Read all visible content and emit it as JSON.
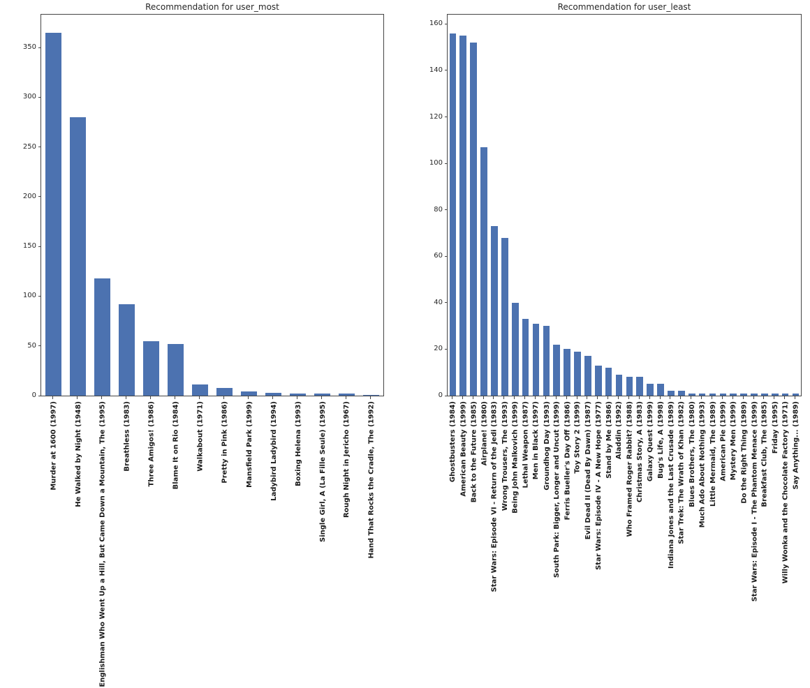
{
  "figure": {
    "background_color": "#ffffff",
    "spine_color": "#444444",
    "text_color": "#262626"
  },
  "chart_data": [
    {
      "type": "bar",
      "title": "Recommendation for user_most",
      "xlabel": "",
      "ylabel": "",
      "bar_color": "#4c72b0",
      "ylim": [
        0,
        383
      ],
      "yticks": [
        0,
        50,
        100,
        150,
        200,
        250,
        300,
        350
      ],
      "grid": false,
      "legend": false,
      "categories": [
        "Murder at 1600 (1997)",
        "He Walked by Night (1948)",
        "Englishman Who Went Up a Hill, But Came Down a Mountain, The (1995)",
        "Breathless (1983)",
        "Three Amigos! (1986)",
        "Blame It on Rio (1984)",
        "Walkabout (1971)",
        "Pretty in Pink (1986)",
        "Mansfield Park (1999)",
        "Ladybird Ladybird (1994)",
        "Boxing Helena (1993)",
        "Single Girl, A (La Fille Seule) (1995)",
        "Rough Night in Jericho (1967)",
        "Hand That Rocks the Cradle, The (1992)"
      ],
      "values": [
        365,
        280,
        118,
        92,
        55,
        52,
        11,
        8,
        4,
        3,
        2,
        2,
        2,
        1
      ]
    },
    {
      "type": "bar",
      "title": "Recommendation for user_least",
      "xlabel": "",
      "ylabel": "",
      "bar_color": "#4c72b0",
      "ylim": [
        0,
        164
      ],
      "yticks": [
        0,
        20,
        40,
        60,
        80,
        100,
        120,
        140,
        160
      ],
      "grid": false,
      "legend": false,
      "categories": [
        "Ghostbusters (1984)",
        "American Beauty (1999)",
        "Back to the Future (1985)",
        "Airplane! (1980)",
        "Star Wars: Episode VI - Return of the Jedi (1983)",
        "Wrong Trousers, The (1993)",
        "Being John Malkovich (1999)",
        "Lethal Weapon (1987)",
        "Men in Black (1997)",
        "Groundhog Day (1993)",
        "South Park: Bigger, Longer and Uncut (1999)",
        "Ferris Bueller's Day Off (1986)",
        "Toy Story 2 (1999)",
        "Evil Dead II (Dead By Dawn) (1987)",
        "Star Wars: Episode IV - A New Hope (1977)",
        "Stand by Me (1986)",
        "Aladdin (1992)",
        "Who Framed Roger Rabbit? (1988)",
        "Christmas Story, A (1983)",
        "Galaxy Quest (1999)",
        "Bug's Life, A (1998)",
        "Indiana Jones and the Last Crusade (1989)",
        "Star Trek: The Wrath of Khan (1982)",
        "Blues Brothers, The (1980)",
        "Much Ado About Nothing (1993)",
        "Little Mermaid, The (1989)",
        "American Pie (1999)",
        "Mystery Men (1999)",
        "Do the Right Thing (1989)",
        "Star Wars: Episode I - The Phantom Menace (1999)",
        "Breakfast Club, The (1985)",
        "Friday (1995)",
        "Willy Wonka and the Chocolate Factory (1971)",
        "Say Anything... (1989)"
      ],
      "values": [
        156,
        155,
        152,
        107,
        73,
        68,
        40,
        33,
        31,
        30,
        22,
        20,
        19,
        17,
        13,
        12,
        9,
        8,
        8,
        5,
        5,
        2,
        2,
        1,
        1,
        1,
        1,
        1,
        1,
        1,
        1,
        1,
        1,
        1
      ]
    }
  ]
}
